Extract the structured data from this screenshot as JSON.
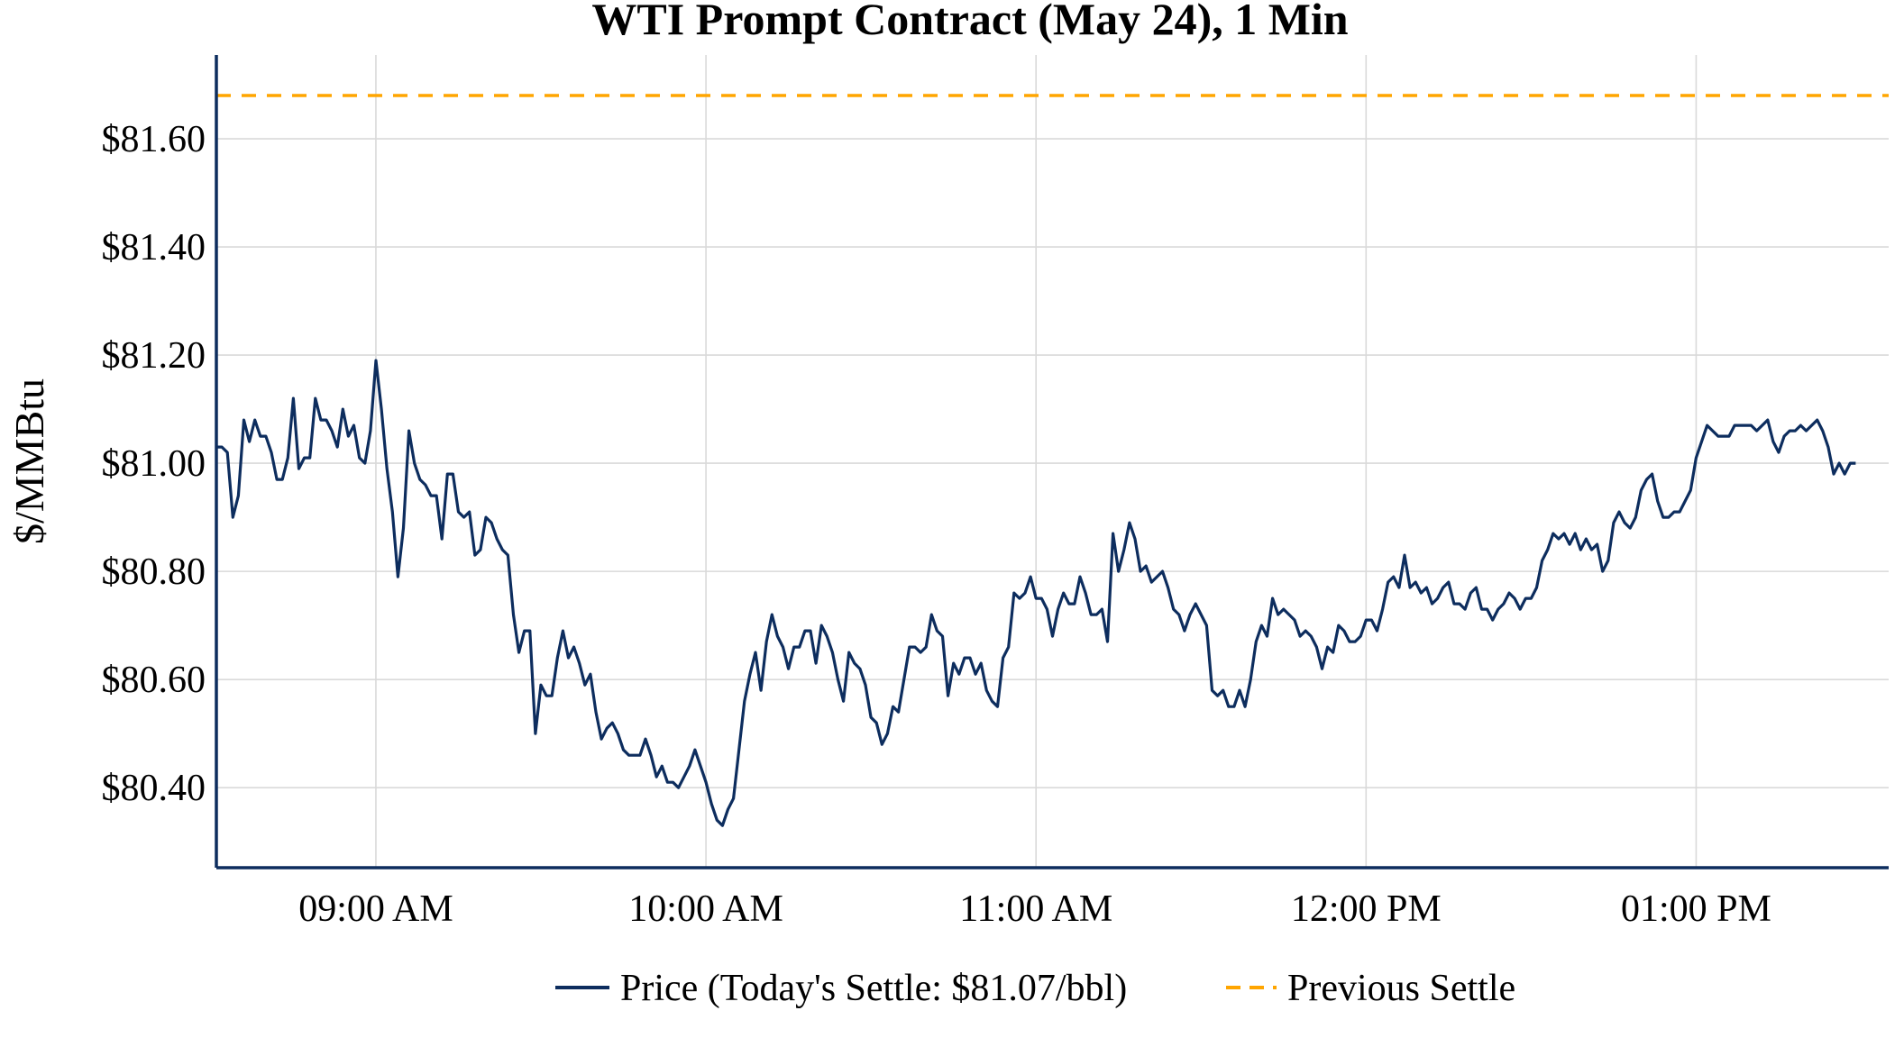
{
  "chart_data": {
    "type": "line",
    "title": "WTI Prompt Contract (May 24), 1 Min",
    "xlabel": "",
    "ylabel": "$/MMBtu",
    "x_unit": "minutes since 08:31",
    "start_time": "08:31",
    "interval_minutes": 1,
    "xlim": [
      0,
      304
    ],
    "ylim": [
      80.252,
      81.755
    ],
    "grid": true,
    "x_ticks": [
      {
        "minute": 29,
        "label": "09:00 AM"
      },
      {
        "minute": 89,
        "label": "10:00 AM"
      },
      {
        "minute": 149,
        "label": "11:00 AM"
      },
      {
        "minute": 209,
        "label": "12:00 PM"
      },
      {
        "minute": 269,
        "label": "01:00 PM"
      }
    ],
    "y_ticks": [
      {
        "value": 80.4,
        "label": "$80.40"
      },
      {
        "value": 80.6,
        "label": "$80.60"
      },
      {
        "value": 80.8,
        "label": "$80.80"
      },
      {
        "value": 81.0,
        "label": "$81.00"
      },
      {
        "value": 81.2,
        "label": "$81.20"
      },
      {
        "value": 81.4,
        "label": "$81.40"
      },
      {
        "value": 81.6,
        "label": "$81.60"
      }
    ],
    "legend_position": "bottom-center",
    "series": [
      {
        "name": "Price (Today's Settle: $81.07/bbl)",
        "color": "#0d2d5e",
        "style": "solid",
        "values": [
          81.03,
          81.03,
          81.02,
          80.9,
          80.94,
          81.08,
          81.04,
          81.08,
          81.05,
          81.05,
          81.02,
          80.97,
          80.97,
          81.01,
          81.12,
          80.99,
          81.01,
          81.01,
          81.12,
          81.08,
          81.08,
          81.06,
          81.03,
          81.1,
          81.05,
          81.07,
          81.01,
          81.0,
          81.06,
          81.19,
          81.1,
          80.99,
          80.91,
          80.79,
          80.88,
          81.06,
          81.0,
          80.97,
          80.96,
          80.94,
          80.94,
          80.86,
          80.98,
          80.98,
          80.91,
          80.9,
          80.91,
          80.83,
          80.84,
          80.9,
          80.89,
          80.86,
          80.84,
          80.83,
          80.72,
          80.65,
          80.69,
          80.69,
          80.5,
          80.59,
          80.57,
          80.57,
          80.64,
          80.69,
          80.64,
          80.66,
          80.63,
          80.59,
          80.61,
          80.54,
          80.49,
          80.51,
          80.52,
          80.5,
          80.47,
          80.46,
          80.46,
          80.46,
          80.49,
          80.46,
          80.42,
          80.44,
          80.41,
          80.41,
          80.4,
          80.42,
          80.44,
          80.47,
          80.44,
          80.41,
          80.37,
          80.34,
          80.33,
          80.36,
          80.38,
          80.47,
          80.56,
          80.61,
          80.65,
          80.58,
          80.67,
          80.72,
          80.68,
          80.66,
          80.62,
          80.66,
          80.66,
          80.69,
          80.69,
          80.63,
          80.7,
          80.68,
          80.65,
          80.6,
          80.56,
          80.65,
          80.63,
          80.62,
          80.59,
          80.53,
          80.52,
          80.48,
          80.5,
          80.55,
          80.54,
          80.6,
          80.66,
          80.66,
          80.65,
          80.66,
          80.72,
          80.69,
          80.68,
          80.57,
          80.63,
          80.61,
          80.64,
          80.64,
          80.61,
          80.63,
          80.58,
          80.56,
          80.55,
          80.64,
          80.66,
          80.76,
          80.75,
          80.76,
          80.79,
          80.75,
          80.75,
          80.73,
          80.68,
          80.73,
          80.76,
          80.74,
          80.74,
          80.79,
          80.76,
          80.72,
          80.72,
          80.73,
          80.67,
          80.87,
          80.8,
          80.84,
          80.89,
          80.86,
          80.8,
          80.81,
          80.78,
          80.79,
          80.8,
          80.77,
          80.73,
          80.72,
          80.69,
          80.72,
          80.74,
          80.72,
          80.7,
          80.58,
          80.57,
          80.58,
          80.55,
          80.55,
          80.58,
          80.55,
          80.6,
          80.67,
          80.7,
          80.68,
          80.75,
          80.72,
          80.73,
          80.72,
          80.71,
          80.68,
          80.69,
          80.68,
          80.66,
          80.62,
          80.66,
          80.65,
          80.7,
          80.69,
          80.67,
          80.67,
          80.68,
          80.71,
          80.71,
          80.69,
          80.73,
          80.78,
          80.79,
          80.77,
          80.83,
          80.77,
          80.78,
          80.76,
          80.77,
          80.74,
          80.75,
          80.77,
          80.78,
          80.74,
          80.74,
          80.73,
          80.76,
          80.77,
          80.73,
          80.73,
          80.71,
          80.73,
          80.74,
          80.76,
          80.75,
          80.73,
          80.75,
          80.75,
          80.77,
          80.82,
          80.84,
          80.87,
          80.86,
          80.87,
          80.85,
          80.87,
          80.84,
          80.86,
          80.84,
          80.85,
          80.8,
          80.82,
          80.89,
          80.91,
          80.89,
          80.88,
          80.9,
          80.95,
          80.97,
          80.98,
          80.93,
          80.9,
          80.9,
          80.91,
          80.91,
          80.93,
          80.95,
          81.01,
          81.04,
          81.07,
          81.06,
          81.05,
          81.05,
          81.05,
          81.07,
          81.07,
          81.07,
          81.07,
          81.06,
          81.07,
          81.08,
          81.04,
          81.02,
          81.05,
          81.06,
          81.06,
          81.07,
          81.06,
          81.07,
          81.08,
          81.06,
          81.03,
          80.98,
          81.0,
          80.98,
          81.0,
          81.0
        ]
      },
      {
        "name": "Previous Settle",
        "color": "#ffa500",
        "style": "dashed",
        "value": 81.68
      }
    ]
  }
}
